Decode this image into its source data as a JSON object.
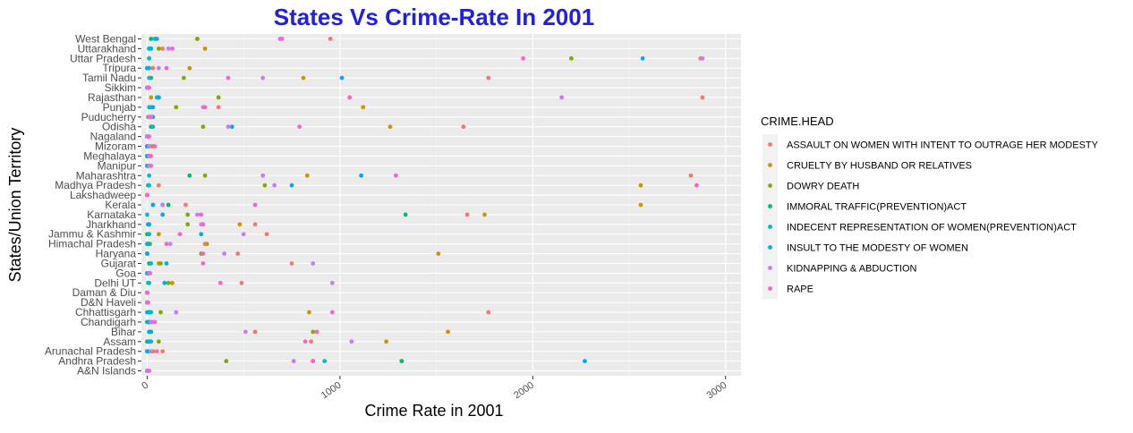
{
  "chart_data": {
    "type": "scatter",
    "title": "States Vs Crime-Rate In 2001",
    "xlabel": "Crime Rate in 2001",
    "ylabel": "States/Union Territory",
    "xlim": [
      -30,
      3080
    ],
    "xticks": [
      0,
      1000,
      2000,
      3000
    ],
    "grid": true,
    "legend_title": "CRIME.HEAD",
    "legend_position": "right",
    "categories": [
      "A&N Islands",
      "Andhra Pradesh",
      "Arunachal Pradesh",
      "Assam",
      "Bihar",
      "Chandigarh",
      "Chhattisgarh",
      "D&N Haveli",
      "Daman & Diu",
      "Delhi UT",
      "Goa",
      "Gujarat",
      "Haryana",
      "Himachal Pradesh",
      "Jammu & Kashmir",
      "Jharkhand",
      "Karnataka",
      "Kerala",
      "Lakshadweep",
      "Madhya Pradesh",
      "Maharashtra",
      "Manipur",
      "Meghalaya",
      "Mizoram",
      "Nagaland",
      "Odisha",
      "Puducherry",
      "Punjab",
      "Rajasthan",
      "Sikkim",
      "Tamil Nadu",
      "Tripura",
      "Uttar Pradesh",
      "Uttarakhand",
      "West Bengal"
    ],
    "series": [
      {
        "name": "ASSAULT ON WOMEN WITH INTENT TO OUTRAGE HER MODESTY",
        "color": "#F8766D",
        "values": [
          2,
          860,
          80,
          850,
          560,
          30,
          1770,
          0,
          0,
          490,
          5,
          750,
          470,
          300,
          620,
          560,
          1660,
          200,
          0,
          60,
          2820,
          10,
          20,
          30,
          0,
          1640,
          10,
          370,
          2880,
          5,
          1770,
          30,
          2870,
          80,
          950
        ]
      },
      {
        "name": "CRUELTY BY HUSBAND OR RELATIVES",
        "color": "#CD9600",
        "values": [
          5,
          1320,
          30,
          1240,
          1560,
          20,
          840,
          0,
          0,
          130,
          2,
          60,
          1510,
          310,
          60,
          480,
          1750,
          2560,
          0,
          2560,
          830,
          0,
          0,
          20,
          0,
          1260,
          15,
          1120,
          20,
          0,
          810,
          220,
          2200,
          300,
          260
        ]
      },
      {
        "name": "DOWRY DEATH",
        "color": "#7CAE00",
        "values": [
          0,
          410,
          5,
          60,
          860,
          10,
          70,
          0,
          0,
          110,
          0,
          70,
          280,
          15,
          10,
          210,
          210,
          30,
          0,
          610,
          300,
          0,
          0,
          0,
          0,
          290,
          5,
          150,
          370,
          0,
          190,
          10,
          2200,
          60,
          260
        ]
      },
      {
        "name": "IMMORAL TRAFFIC(PREVENTION)ACT",
        "color": "#00BE67",
        "values": [
          0,
          1320,
          0,
          0,
          20,
          0,
          10,
          0,
          0,
          5,
          2,
          10,
          0,
          0,
          0,
          10,
          1340,
          110,
          0,
          5,
          220,
          0,
          0,
          0,
          0,
          20,
          10,
          20,
          60,
          0,
          20,
          0,
          10,
          10,
          20
        ]
      },
      {
        "name": "INDECENT REPRESENTATION OF WOMEN(PREVENTION)ACT",
        "color": "#00BFC4",
        "values": [
          0,
          920,
          0,
          20,
          10,
          10,
          20,
          0,
          0,
          10,
          5,
          20,
          0,
          5,
          10,
          5,
          0,
          80,
          0,
          10,
          10,
          0,
          0,
          0,
          0,
          30,
          20,
          10,
          50,
          0,
          10,
          10,
          10,
          10,
          40
        ]
      },
      {
        "name": "INSULT TO THE MODESTY OF WOMEN",
        "color": "#00A9FF",
        "values": [
          0,
          2270,
          0,
          10,
          10,
          5,
          0,
          0,
          0,
          90,
          0,
          100,
          0,
          5,
          280,
          5,
          80,
          30,
          0,
          750,
          1110,
          5,
          5,
          0,
          0,
          440,
          30,
          30,
          60,
          0,
          1010,
          0,
          2570,
          20,
          50
        ]
      },
      {
        "name": "KIDNAPPING & ABDUCTION",
        "color": "#C77CFF",
        "values": [
          0,
          760,
          20,
          1060,
          510,
          20,
          150,
          0,
          0,
          960,
          10,
          860,
          400,
          120,
          500,
          280,
          260,
          80,
          0,
          660,
          600,
          10,
          10,
          10,
          0,
          420,
          10,
          290,
          2150,
          0,
          600,
          60,
          2880,
          110,
          700
        ]
      },
      {
        "name": "RAPE",
        "color": "#FF61CC",
        "values": [
          10,
          860,
          50,
          820,
          880,
          40,
          960,
          5,
          0,
          380,
          15,
          290,
          290,
          100,
          170,
          290,
          280,
          560,
          0,
          2850,
          1290,
          20,
          15,
          40,
          10,
          790,
          20,
          300,
          1050,
          10,
          420,
          100,
          1950,
          130,
          690
        ]
      }
    ]
  }
}
